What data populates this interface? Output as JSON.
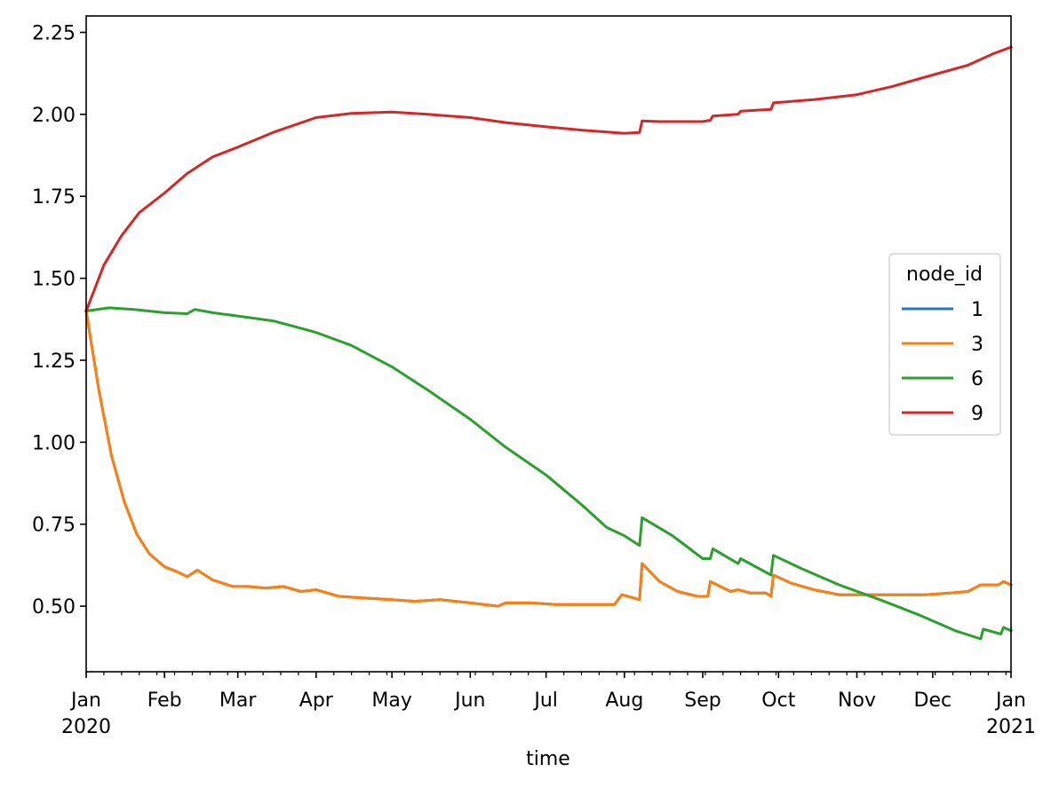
{
  "chart_data": {
    "type": "line",
    "title": "",
    "xlabel": "time",
    "ylabel": "",
    "xlim": [
      "2020-01-01",
      "2021-01-01"
    ],
    "ylim": [
      0.3,
      2.3
    ],
    "grid": false,
    "legend": {
      "title": "node_id",
      "placement": "center-right"
    },
    "y_ticks": [
      "0.50",
      "0.75",
      "1.00",
      "1.25",
      "1.50",
      "1.75",
      "2.00",
      "2.25"
    ],
    "x_ticks": [
      {
        "date": "2020-01-01",
        "label": "Jan",
        "sublabel": "2020"
      },
      {
        "date": "2020-02-01",
        "label": "Feb",
        "sublabel": ""
      },
      {
        "date": "2020-03-01",
        "label": "Mar",
        "sublabel": ""
      },
      {
        "date": "2020-04-01",
        "label": "Apr",
        "sublabel": ""
      },
      {
        "date": "2020-05-01",
        "label": "May",
        "sublabel": ""
      },
      {
        "date": "2020-06-01",
        "label": "Jun",
        "sublabel": ""
      },
      {
        "date": "2020-07-01",
        "label": "Jul",
        "sublabel": ""
      },
      {
        "date": "2020-08-01",
        "label": "Aug",
        "sublabel": ""
      },
      {
        "date": "2020-09-01",
        "label": "Sep",
        "sublabel": ""
      },
      {
        "date": "2020-10-01",
        "label": "Oct",
        "sublabel": ""
      },
      {
        "date": "2020-11-01",
        "label": "Nov",
        "sublabel": ""
      },
      {
        "date": "2020-12-01",
        "label": "Dec",
        "sublabel": ""
      },
      {
        "date": "2021-01-01",
        "label": "Jan",
        "sublabel": "2021"
      }
    ],
    "series": [
      {
        "name": "1",
        "color": "#1f77b4",
        "points": [
          [
            "2020-01-01",
            1.4
          ],
          [
            "2020-01-06",
            1.16
          ],
          [
            "2020-01-11",
            0.96
          ],
          [
            "2020-01-16",
            0.82
          ],
          [
            "2020-01-21",
            0.72
          ],
          [
            "2020-01-26",
            0.66
          ],
          [
            "2020-02-01",
            0.62
          ],
          [
            "2020-02-06",
            0.605
          ],
          [
            "2020-02-10",
            0.59
          ],
          [
            "2020-02-14",
            0.61
          ],
          [
            "2020-02-20",
            0.58
          ],
          [
            "2020-02-28",
            0.56
          ],
          [
            "2020-03-05",
            0.56
          ],
          [
            "2020-03-12",
            0.555
          ],
          [
            "2020-03-19",
            0.56
          ],
          [
            "2020-03-26",
            0.545
          ],
          [
            "2020-04-01",
            0.55
          ],
          [
            "2020-04-10",
            0.53
          ],
          [
            "2020-04-20",
            0.525
          ],
          [
            "2020-05-01",
            0.52
          ],
          [
            "2020-05-10",
            0.515
          ],
          [
            "2020-05-20",
            0.52
          ],
          [
            "2020-06-01",
            0.51
          ],
          [
            "2020-06-12",
            0.5
          ],
          [
            "2020-06-15",
            0.51
          ],
          [
            "2020-06-25",
            0.51
          ],
          [
            "2020-07-05",
            0.505
          ],
          [
            "2020-07-15",
            0.505
          ],
          [
            "2020-07-28",
            0.505
          ],
          [
            "2020-07-31",
            0.535
          ],
          [
            "2020-08-07",
            0.52
          ],
          [
            "2020-08-08",
            0.63
          ],
          [
            "2020-08-15",
            0.575
          ],
          [
            "2020-08-22",
            0.545
          ],
          [
            "2020-08-30",
            0.53
          ],
          [
            "2020-09-03",
            0.53
          ],
          [
            "2020-09-04",
            0.575
          ],
          [
            "2020-09-12",
            0.545
          ],
          [
            "2020-09-15",
            0.55
          ],
          [
            "2020-09-20",
            0.54
          ],
          [
            "2020-09-26",
            0.54
          ],
          [
            "2020-09-28",
            0.53
          ],
          [
            "2020-09-29",
            0.595
          ],
          [
            "2020-10-06",
            0.57
          ],
          [
            "2020-10-15",
            0.55
          ],
          [
            "2020-10-25",
            0.535
          ],
          [
            "2020-11-05",
            0.535
          ],
          [
            "2020-11-15",
            0.535
          ],
          [
            "2020-11-28",
            0.535
          ],
          [
            "2020-12-08",
            0.54
          ],
          [
            "2020-12-15",
            0.545
          ],
          [
            "2020-12-20",
            0.565
          ],
          [
            "2020-12-27",
            0.565
          ],
          [
            "2020-12-29",
            0.575
          ],
          [
            "2021-01-01",
            0.565
          ]
        ]
      },
      {
        "name": "3",
        "color": "#ff7f0e",
        "points": [
          [
            "2020-01-01",
            1.4
          ],
          [
            "2020-01-06",
            1.16
          ],
          [
            "2020-01-11",
            0.96
          ],
          [
            "2020-01-16",
            0.82
          ],
          [
            "2020-01-21",
            0.72
          ],
          [
            "2020-01-26",
            0.66
          ],
          [
            "2020-02-01",
            0.62
          ],
          [
            "2020-02-06",
            0.605
          ],
          [
            "2020-02-10",
            0.59
          ],
          [
            "2020-02-14",
            0.61
          ],
          [
            "2020-02-20",
            0.58
          ],
          [
            "2020-02-28",
            0.56
          ],
          [
            "2020-03-05",
            0.56
          ],
          [
            "2020-03-12",
            0.555
          ],
          [
            "2020-03-19",
            0.56
          ],
          [
            "2020-03-26",
            0.545
          ],
          [
            "2020-04-01",
            0.55
          ],
          [
            "2020-04-10",
            0.53
          ],
          [
            "2020-04-20",
            0.525
          ],
          [
            "2020-05-01",
            0.52
          ],
          [
            "2020-05-10",
            0.515
          ],
          [
            "2020-05-20",
            0.52
          ],
          [
            "2020-06-01",
            0.51
          ],
          [
            "2020-06-12",
            0.5
          ],
          [
            "2020-06-15",
            0.51
          ],
          [
            "2020-06-25",
            0.51
          ],
          [
            "2020-07-05",
            0.505
          ],
          [
            "2020-07-15",
            0.505
          ],
          [
            "2020-07-28",
            0.505
          ],
          [
            "2020-07-31",
            0.535
          ],
          [
            "2020-08-07",
            0.52
          ],
          [
            "2020-08-08",
            0.63
          ],
          [
            "2020-08-15",
            0.575
          ],
          [
            "2020-08-22",
            0.545
          ],
          [
            "2020-08-30",
            0.53
          ],
          [
            "2020-09-03",
            0.53
          ],
          [
            "2020-09-04",
            0.575
          ],
          [
            "2020-09-12",
            0.545
          ],
          [
            "2020-09-15",
            0.55
          ],
          [
            "2020-09-20",
            0.54
          ],
          [
            "2020-09-26",
            0.54
          ],
          [
            "2020-09-28",
            0.53
          ],
          [
            "2020-09-29",
            0.595
          ],
          [
            "2020-10-06",
            0.57
          ],
          [
            "2020-10-15",
            0.55
          ],
          [
            "2020-10-25",
            0.535
          ],
          [
            "2020-11-05",
            0.535
          ],
          [
            "2020-11-15",
            0.535
          ],
          [
            "2020-11-28",
            0.535
          ],
          [
            "2020-12-08",
            0.54
          ],
          [
            "2020-12-15",
            0.545
          ],
          [
            "2020-12-20",
            0.565
          ],
          [
            "2020-12-27",
            0.565
          ],
          [
            "2020-12-29",
            0.575
          ],
          [
            "2021-01-01",
            0.565
          ]
        ]
      },
      {
        "name": "6",
        "color": "#2ca02c",
        "points": [
          [
            "2020-01-01",
            1.4
          ],
          [
            "2020-01-10",
            1.41
          ],
          [
            "2020-01-20",
            1.405
          ],
          [
            "2020-02-01",
            1.395
          ],
          [
            "2020-02-10",
            1.392
          ],
          [
            "2020-02-13",
            1.405
          ],
          [
            "2020-02-20",
            1.395
          ],
          [
            "2020-03-01",
            1.385
          ],
          [
            "2020-03-15",
            1.37
          ],
          [
            "2020-04-01",
            1.335
          ],
          [
            "2020-04-15",
            1.295
          ],
          [
            "2020-05-01",
            1.23
          ],
          [
            "2020-05-15",
            1.16
          ],
          [
            "2020-06-01",
            1.07
          ],
          [
            "2020-06-15",
            0.985
          ],
          [
            "2020-07-01",
            0.9
          ],
          [
            "2020-07-15",
            0.81
          ],
          [
            "2020-07-25",
            0.74
          ],
          [
            "2020-08-01",
            0.715
          ],
          [
            "2020-08-07",
            0.685
          ],
          [
            "2020-08-08",
            0.77
          ],
          [
            "2020-08-20",
            0.715
          ],
          [
            "2020-09-01",
            0.645
          ],
          [
            "2020-09-04",
            0.645
          ],
          [
            "2020-09-05",
            0.675
          ],
          [
            "2020-09-15",
            0.63
          ],
          [
            "2020-09-16",
            0.645
          ],
          [
            "2020-09-28",
            0.595
          ],
          [
            "2020-09-29",
            0.655
          ],
          [
            "2020-10-10",
            0.615
          ],
          [
            "2020-10-25",
            0.565
          ],
          [
            "2020-11-10",
            0.52
          ],
          [
            "2020-11-25",
            0.475
          ],
          [
            "2020-12-10",
            0.425
          ],
          [
            "2020-12-20",
            0.4
          ],
          [
            "2020-12-21",
            0.43
          ],
          [
            "2020-12-28",
            0.415
          ],
          [
            "2020-12-29",
            0.435
          ],
          [
            "2021-01-01",
            0.425
          ]
        ]
      },
      {
        "name": "9",
        "color": "#d62728",
        "points": [
          [
            "2020-01-01",
            1.4
          ],
          [
            "2020-01-08",
            1.54
          ],
          [
            "2020-01-15",
            1.63
          ],
          [
            "2020-01-22",
            1.7
          ],
          [
            "2020-02-01",
            1.76
          ],
          [
            "2020-02-10",
            1.82
          ],
          [
            "2020-02-20",
            1.87
          ],
          [
            "2020-03-01",
            1.9
          ],
          [
            "2020-03-15",
            1.945
          ],
          [
            "2020-04-01",
            1.99
          ],
          [
            "2020-04-15",
            2.003
          ],
          [
            "2020-05-01",
            2.007
          ],
          [
            "2020-05-15",
            2.0
          ],
          [
            "2020-06-01",
            1.99
          ],
          [
            "2020-06-15",
            1.975
          ],
          [
            "2020-07-01",
            1.962
          ],
          [
            "2020-07-15",
            1.952
          ],
          [
            "2020-08-01",
            1.942
          ],
          [
            "2020-08-07",
            1.945
          ],
          [
            "2020-08-08",
            1.98
          ],
          [
            "2020-08-15",
            1.978
          ],
          [
            "2020-09-01",
            1.978
          ],
          [
            "2020-09-04",
            1.982
          ],
          [
            "2020-09-05",
            1.995
          ],
          [
            "2020-09-15",
            2.0
          ],
          [
            "2020-09-16",
            2.01
          ],
          [
            "2020-09-28",
            2.015
          ],
          [
            "2020-09-29",
            2.035
          ],
          [
            "2020-10-15",
            2.045
          ],
          [
            "2020-11-01",
            2.06
          ],
          [
            "2020-11-15",
            2.085
          ],
          [
            "2020-12-01",
            2.12
          ],
          [
            "2020-12-15",
            2.15
          ],
          [
            "2020-12-25",
            2.185
          ],
          [
            "2021-01-01",
            2.205
          ]
        ]
      }
    ]
  }
}
